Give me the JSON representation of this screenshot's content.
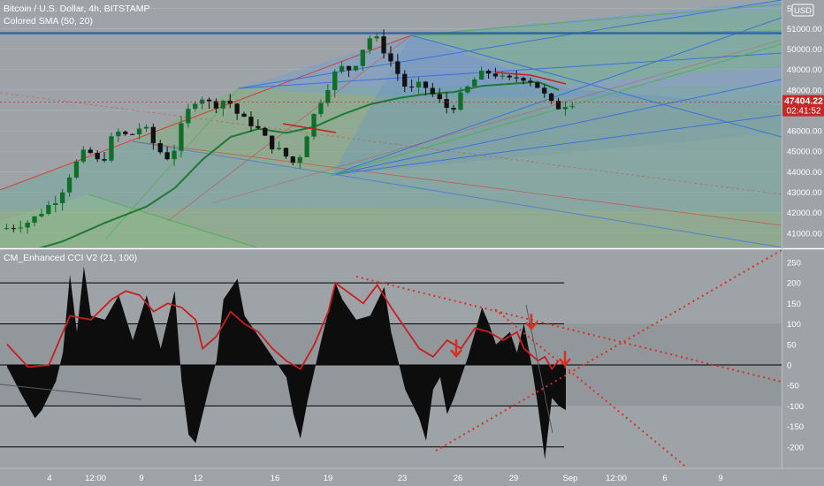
{
  "header": {
    "symbol_line": "Bitcoin / U.S. Dollar, 4h, BITSTAMP",
    "sma_label": "Colored SMA (50, 20)",
    "currency_badge": "USD",
    "price_tag": "47404.22",
    "countdown": "02:41:52"
  },
  "indicator": {
    "title": "CM_Enhanced CCI V2 (21, 100)"
  },
  "colors": {
    "background": "#9ea3a8",
    "candle_up": "#0f6e2a",
    "candle_down": "#111111",
    "sma": "#1e7a32",
    "cci_fill": "#0d0d0d",
    "cci_line": "#c81e1e",
    "fan_blue": "#2f6fe0",
    "fan_green": "#4caf50",
    "price_tag_bg": "#c62828"
  },
  "chart_data": [
    {
      "type": "candlestick",
      "title": "Bitcoin / U.S. Dollar, 4h, BITSTAMP",
      "x_tick_labels": [
        "4",
        "12:00",
        "9",
        "12",
        "16",
        "19",
        "23",
        "26",
        "29",
        "Sep",
        "12:00",
        "6",
        "9"
      ],
      "y_tick_labels": [
        "41000.00",
        "42000.00",
        "43000.00",
        "44000.00",
        "45000.00",
        "46000.00",
        "47000.00",
        "48000.00",
        "49000.00",
        "50000.00",
        "51000.00",
        "52"
      ],
      "ylim": [
        40300,
        52400
      ],
      "last_price": 47404.22,
      "close_path": [
        [
          0,
          41200
        ],
        [
          4,
          41600
        ],
        [
          8,
          42800
        ],
        [
          10,
          44200
        ],
        [
          12,
          45100
        ],
        [
          14,
          44300
        ],
        [
          16,
          46000
        ],
        [
          18,
          45700
        ],
        [
          20,
          46300
        ],
        [
          22,
          45100
        ],
        [
          24,
          44600
        ],
        [
          26,
          46700
        ],
        [
          28,
          47800
        ],
        [
          30,
          47200
        ],
        [
          32,
          47600
        ],
        [
          34,
          46600
        ],
        [
          36,
          46300
        ],
        [
          38,
          45400
        ],
        [
          40,
          44900
        ],
        [
          42,
          44300
        ],
        [
          44,
          46400
        ],
        [
          46,
          47900
        ],
        [
          48,
          49100
        ],
        [
          50,
          49000
        ],
        [
          52,
          50400
        ],
        [
          53,
          50700
        ],
        [
          55,
          49700
        ],
        [
          57,
          48500
        ],
        [
          58,
          47900
        ],
        [
          60,
          48300
        ],
        [
          62,
          47600
        ],
        [
          64,
          47000
        ],
        [
          66,
          47900
        ],
        [
          68,
          48700
        ],
        [
          70,
          48900
        ],
        [
          72,
          48400
        ],
        [
          74,
          48700
        ],
        [
          76,
          48400
        ],
        [
          78,
          47500
        ],
        [
          79,
          47100
        ],
        [
          81,
          47400
        ]
      ],
      "sma_line": [
        [
          0,
          39800
        ],
        [
          8,
          40600
        ],
        [
          14,
          41500
        ],
        [
          20,
          42300
        ],
        [
          24,
          43200
        ],
        [
          28,
          44600
        ],
        [
          32,
          45700
        ],
        [
          36,
          46100
        ],
        [
          40,
          45900
        ],
        [
          44,
          46200
        ],
        [
          48,
          46800
        ],
        [
          52,
          47300
        ],
        [
          56,
          47600
        ],
        [
          60,
          47800
        ],
        [
          64,
          47900
        ],
        [
          68,
          48200
        ],
        [
          72,
          48300
        ],
        [
          76,
          48400
        ],
        [
          79,
          48000
        ]
      ],
      "horizontal_lines": [
        50800,
        50750
      ]
    },
    {
      "type": "area",
      "title": "CM_Enhanced CCI V2 (21, 100)",
      "y_tick_labels": [
        "250",
        "200",
        "150",
        "100",
        "50",
        "0",
        "-50",
        "-100",
        "-150",
        "-200"
      ],
      "ylim": [
        -250,
        280
      ],
      "levels": [
        200,
        100,
        0,
        -100,
        -200
      ],
      "cci": [
        [
          0,
          -5
        ],
        [
          2,
          -70
        ],
        [
          4,
          -130
        ],
        [
          5,
          -110
        ],
        [
          7,
          -40
        ],
        [
          8,
          30
        ],
        [
          9,
          220
        ],
        [
          10,
          80
        ],
        [
          11,
          240
        ],
        [
          12,
          120
        ],
        [
          14,
          110
        ],
        [
          16,
          170
        ],
        [
          18,
          60
        ],
        [
          20,
          170
        ],
        [
          22,
          40
        ],
        [
          24,
          180
        ],
        [
          25,
          -40
        ],
        [
          26,
          -170
        ],
        [
          27,
          -190
        ],
        [
          29,
          -50
        ],
        [
          30,
          10
        ],
        [
          31,
          160
        ],
        [
          33,
          210
        ],
        [
          34,
          120
        ],
        [
          36,
          70
        ],
        [
          38,
          20
        ],
        [
          40,
          -30
        ],
        [
          41,
          -120
        ],
        [
          42,
          -180
        ],
        [
          43,
          -90
        ],
        [
          45,
          60
        ],
        [
          47,
          200
        ],
        [
          48,
          160
        ],
        [
          50,
          110
        ],
        [
          52,
          120
        ],
        [
          54,
          190
        ],
        [
          55,
          80
        ],
        [
          56,
          10
        ],
        [
          57,
          -60
        ],
        [
          59,
          -130
        ],
        [
          60,
          -185
        ],
        [
          61,
          -60
        ],
        [
          62,
          -30
        ],
        [
          63,
          -120
        ],
        [
          64,
          -80
        ],
        [
          66,
          20
        ],
        [
          67,
          80
        ],
        [
          68,
          140
        ],
        [
          69,
          100
        ],
        [
          70,
          50
        ],
        [
          72,
          80
        ],
        [
          73,
          30
        ],
        [
          74,
          100
        ],
        [
          75,
          10
        ],
        [
          76,
          -100
        ],
        [
          77,
          -230
        ],
        [
          78,
          -80
        ],
        [
          79,
          -100
        ],
        [
          80,
          -110
        ]
      ],
      "cci_signal": [
        [
          0,
          50
        ],
        [
          3,
          -5
        ],
        [
          6,
          0
        ],
        [
          9,
          120
        ],
        [
          12,
          110
        ],
        [
          15,
          160
        ],
        [
          17,
          180
        ],
        [
          19,
          170
        ],
        [
          21,
          130
        ],
        [
          23,
          150
        ],
        [
          25,
          140
        ],
        [
          27,
          110
        ],
        [
          28,
          40
        ],
        [
          30,
          70
        ],
        [
          32,
          130
        ],
        [
          34,
          100
        ],
        [
          36,
          80
        ],
        [
          38,
          40
        ],
        [
          40,
          10
        ],
        [
          42,
          -10
        ],
        [
          44,
          50
        ],
        [
          46,
          130
        ],
        [
          47,
          200
        ],
        [
          49,
          175
        ],
        [
          51,
          150
        ],
        [
          53,
          195
        ],
        [
          55,
          140
        ],
        [
          57,
          90
        ],
        [
          59,
          40
        ],
        [
          61,
          20
        ],
        [
          63,
          60
        ],
        [
          65,
          40
        ],
        [
          67,
          90
        ],
        [
          69,
          80
        ],
        [
          71,
          60
        ],
        [
          73,
          80
        ],
        [
          74,
          40
        ],
        [
          76,
          10
        ],
        [
          77,
          20
        ],
        [
          78,
          -10
        ],
        [
          79,
          10
        ]
      ]
    }
  ]
}
